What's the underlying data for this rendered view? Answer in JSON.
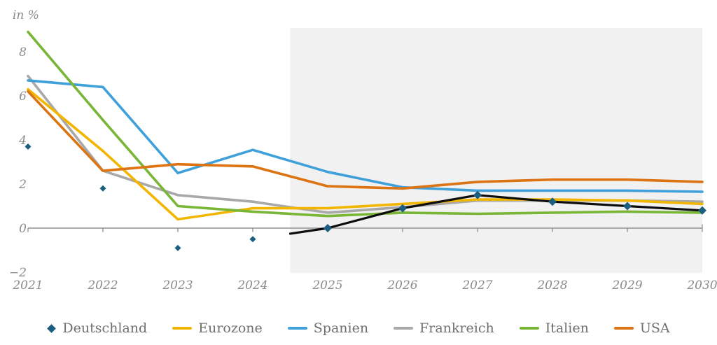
{
  "chart_data": {
    "type": "line",
    "title": "",
    "unit_label": "in %",
    "xlabel": "",
    "ylabel": "in %",
    "x": [
      2021,
      2022,
      2023,
      2024,
      2025,
      2026,
      2027,
      2028,
      2029,
      2030
    ],
    "x_axis_labels": [
      "2021",
      "2022",
      "2023",
      "2024",
      "2025",
      "2026",
      "2027",
      "2028",
      "2029",
      "2030"
    ],
    "y_ticks": [
      8,
      6,
      4,
      2,
      0,
      -2
    ],
    "y_tick_labels": [
      "8",
      "6",
      "4",
      "2",
      "0",
      "−2"
    ],
    "ylim": [
      -2.7,
      9.7
    ],
    "grid": false,
    "legend_position": "bottom",
    "forecast_region": {
      "x_start": 2024.5,
      "x_end": 2030,
      "color": "#f1f1f1"
    },
    "series": [
      {
        "name": "Deutschland",
        "marker": "diamond",
        "marker_color": "#1c5e80",
        "color": "#0c0c0c",
        "line_only_from_x": 2024.5,
        "values": [
          3.7,
          1.8,
          -0.9,
          -0.5,
          0.0,
          0.9,
          1.5,
          1.2,
          1.0,
          0.8
        ]
      },
      {
        "name": "Eurozone",
        "marker": "line",
        "color": "#f2b600",
        "values": [
          6.3,
          3.5,
          0.4,
          0.9,
          0.9,
          1.1,
          1.3,
          1.3,
          1.25,
          1.1
        ]
      },
      {
        "name": "Spanien",
        "marker": "line",
        "color": "#3fa0da",
        "values": [
          6.7,
          6.4,
          2.5,
          3.55,
          2.55,
          1.85,
          1.7,
          1.7,
          1.7,
          1.65
        ]
      },
      {
        "name": "Frankreich",
        "marker": "line",
        "color": "#a8a8a8",
        "values": [
          6.9,
          2.6,
          1.5,
          1.2,
          0.7,
          0.95,
          1.25,
          1.25,
          1.25,
          1.2
        ]
      },
      {
        "name": "Italien",
        "marker": "line",
        "color": "#79b637",
        "values": [
          8.9,
          4.9,
          1.0,
          0.75,
          0.55,
          0.7,
          0.65,
          0.7,
          0.75,
          0.7
        ]
      },
      {
        "name": "USA",
        "marker": "line",
        "color": "#dc7413",
        "values": [
          6.2,
          2.6,
          2.9,
          2.8,
          1.9,
          1.8,
          2.1,
          2.2,
          2.2,
          2.1
        ]
      }
    ]
  }
}
